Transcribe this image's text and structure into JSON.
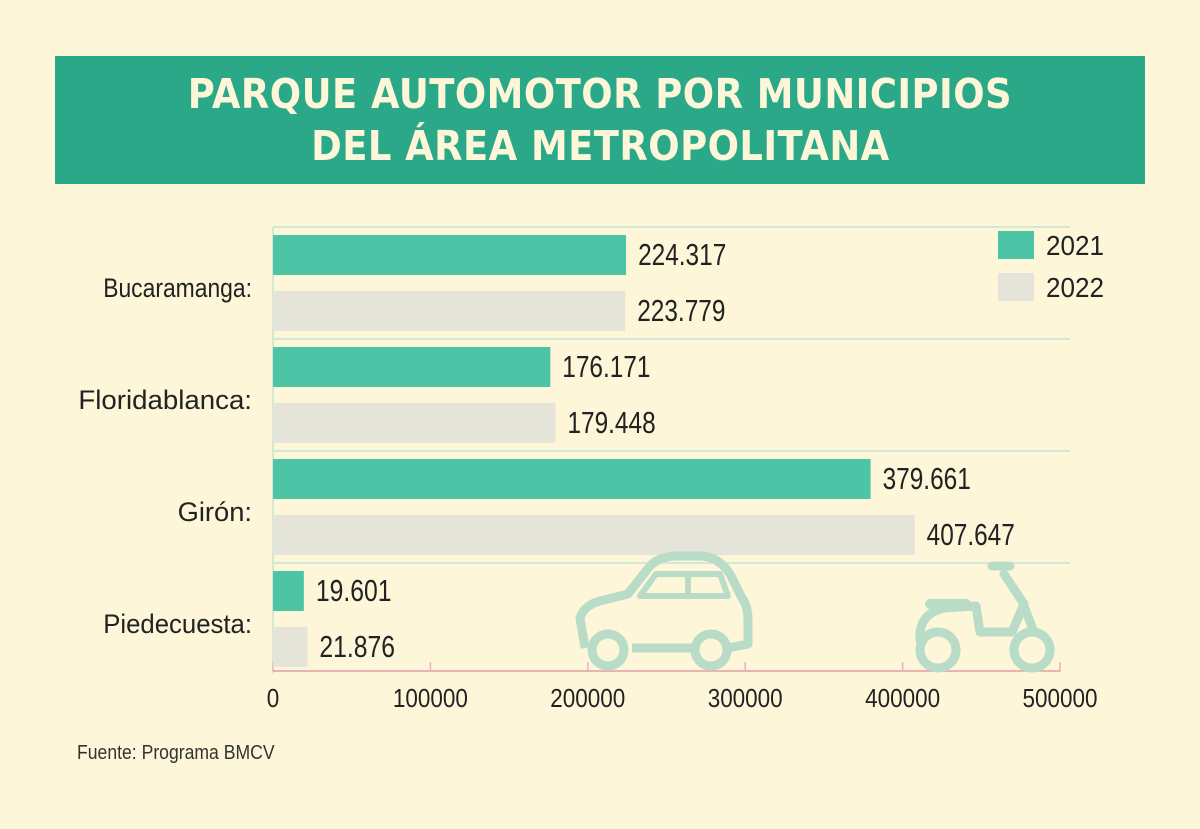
{
  "title_line1": "PARQUE AUTOMOTOR POR MUNICIPIOS",
  "title_line2": "DEL ÁREA METROPOLITANA",
  "source": "Fuente: Programa BMCV",
  "colors": {
    "s2021": "#4cc4a5",
    "s2022": "#e4e4d8",
    "grid": "#c8e3d3",
    "axis": "#e7b4b4",
    "text": "#222222",
    "banner": "#2aa887"
  },
  "icons": [
    "car-icon",
    "scooter-icon"
  ],
  "chart_data": {
    "type": "bar",
    "orientation": "horizontal",
    "title": "PARQUE AUTOMOTOR POR MUNICIPIOS DEL ÁREA METROPOLITANA",
    "categories": [
      "Bucaramanga:",
      "Floridablanca:",
      "Girón:",
      "Piedecuesta:"
    ],
    "series": [
      {
        "name": "2021",
        "values": [
          224317,
          176171,
          379661,
          19601
        ],
        "labels": [
          "224.317",
          "176.171",
          "379.661",
          "19.601"
        ]
      },
      {
        "name": "2022",
        "values": [
          223779,
          179448,
          407647,
          21876
        ],
        "labels": [
          "223.779",
          "179.448",
          "407.647",
          "21.876"
        ]
      }
    ],
    "xlim": [
      0,
      500000
    ],
    "xticks": [
      "0",
      "100000",
      "200000",
      "300000",
      "400000",
      "500000"
    ],
    "legend_position": "top-right",
    "grid": true
  }
}
